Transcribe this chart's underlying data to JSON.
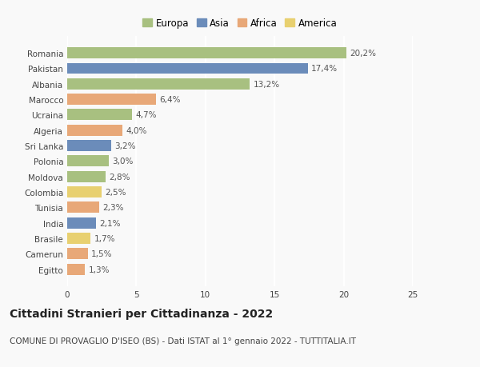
{
  "countries": [
    "Romania",
    "Pakistan",
    "Albania",
    "Marocco",
    "Ucraina",
    "Algeria",
    "Sri Lanka",
    "Polonia",
    "Moldova",
    "Colombia",
    "Tunisia",
    "India",
    "Brasile",
    "Camerun",
    "Egitto"
  ],
  "values": [
    20.2,
    17.4,
    13.2,
    6.4,
    4.7,
    4.0,
    3.2,
    3.0,
    2.8,
    2.5,
    2.3,
    2.1,
    1.7,
    1.5,
    1.3
  ],
  "labels": [
    "20,2%",
    "17,4%",
    "13,2%",
    "6,4%",
    "4,7%",
    "4,0%",
    "3,2%",
    "3,0%",
    "2,8%",
    "2,5%",
    "2,3%",
    "2,1%",
    "1,7%",
    "1,5%",
    "1,3%"
  ],
  "continents": [
    "Europa",
    "Asia",
    "Europa",
    "Africa",
    "Europa",
    "Africa",
    "Asia",
    "Europa",
    "Europa",
    "America",
    "Africa",
    "Asia",
    "America",
    "Africa",
    "Africa"
  ],
  "continent_colors": {
    "Europa": "#a8c080",
    "Asia": "#6b8cba",
    "Africa": "#e8a878",
    "America": "#e8d070"
  },
  "legend_order": [
    "Europa",
    "Asia",
    "Africa",
    "America"
  ],
  "title": "Cittadini Stranieri per Cittadinanza - 2022",
  "subtitle": "COMUNE DI PROVAGLIO D'ISEO (BS) - Dati ISTAT al 1° gennaio 2022 - TUTTITALIA.IT",
  "xlim": [
    0,
    25
  ],
  "xticks": [
    0,
    5,
    10,
    15,
    20,
    25
  ],
  "background_color": "#f9f9f9",
  "grid_color": "#ffffff",
  "title_fontsize": 10,
  "subtitle_fontsize": 7.5,
  "label_fontsize": 7.5,
  "tick_fontsize": 7.5,
  "legend_fontsize": 8.5,
  "bar_height": 0.72
}
